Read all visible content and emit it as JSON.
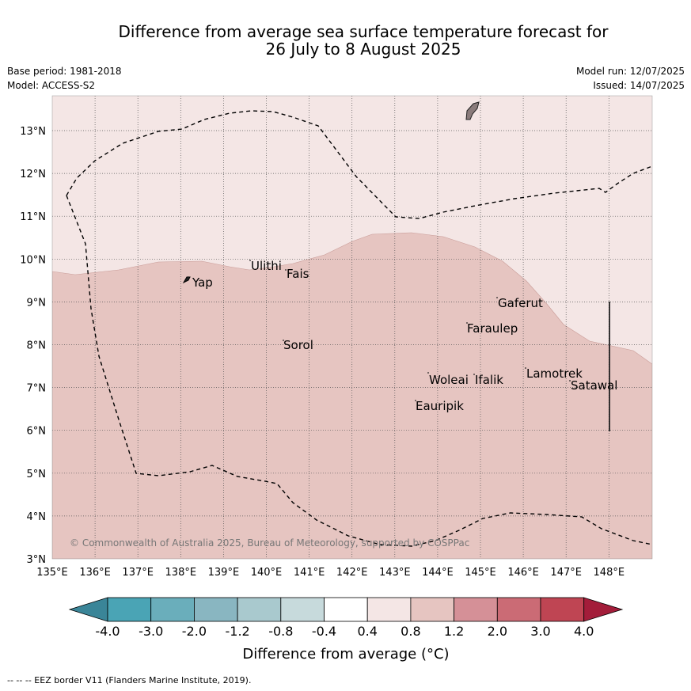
{
  "title_line1": "Difference from average sea surface temperature forecast for",
  "title_line2": "26 July to 8 August 2025",
  "base_period": "Base period: 1981-2018",
  "model": "Model: ACCESS-S2",
  "model_run": "Model run: 12/07/2025",
  "issued": "Issued: 14/07/2025",
  "copyright": "© Commonwealth of Australia 2025, Bureau of Meteorology, supported by COSPPac",
  "footnote": "-- -- -- EEZ border V11 (Flanders Marine Institute, 2019).",
  "map": {
    "lon_labels": [
      "135°E",
      "136°E",
      "137°E",
      "138°E",
      "139°E",
      "140°E",
      "141°E",
      "142°E",
      "143°E",
      "144°E",
      "145°E",
      "146°E",
      "147°E",
      "148°E"
    ],
    "lat_labels": [
      "3°N",
      "4°N",
      "5°N",
      "6°N",
      "7°N",
      "8°N",
      "9°N",
      "10°N",
      "11°N",
      "12°N",
      "13°N"
    ],
    "places": [
      "Ulithi",
      "Fais",
      "Yap",
      "Gaferut",
      "Faraulep",
      "Sorol",
      "Lamotrek",
      "Woleai",
      "Ifalik",
      "Satawal",
      "Eauripik"
    ],
    "fill_colors": {
      "light": "#f4e6e5",
      "medium": "#e6c5c1"
    }
  },
  "colorbar": {
    "label": "Difference from average (°C)",
    "tick_labels": [
      "-4.0",
      "-3.0",
      "-2.0",
      "-1.2",
      "-0.8",
      "-0.4",
      "0.4",
      "0.8",
      "1.2",
      "2.0",
      "3.0",
      "4.0"
    ],
    "colors": [
      "#3a8598",
      "#4aa4b5",
      "#6aaebb",
      "#89b6c1",
      "#a9c9ce",
      "#c7dadc",
      "#ffffff",
      "#f4e6e5",
      "#e6c5c1",
      "#d59097",
      "#cb6b75",
      "#bf4553",
      "#a31d3a"
    ]
  }
}
